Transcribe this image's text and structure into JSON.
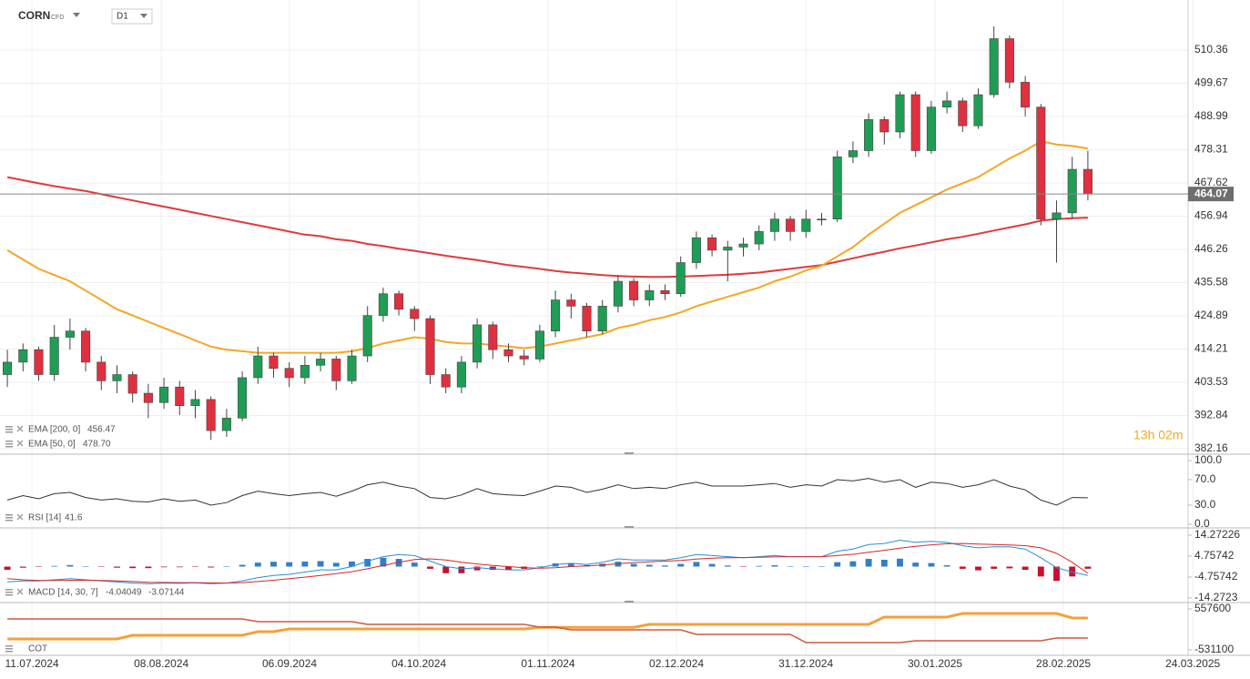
{
  "chart_data": {
    "type": "candlestick",
    "symbol": "CORN",
    "instrument_type": "CFD",
    "timeframe": "D1",
    "countdown": "13h 02m",
    "xlim": [
      -0.47,
      75.4
    ],
    "xticks": [
      {
        "value": 1.57,
        "label": "11.07.2024"
      },
      {
        "value": 9.83,
        "label": "08.08.2024"
      },
      {
        "value": 18.02,
        "label": "06.09.2024"
      },
      {
        "value": 26.28,
        "label": "04.10.2024"
      },
      {
        "value": 34.53,
        "label": "01.11.2024"
      },
      {
        "value": 42.73,
        "label": "02.12.2024"
      },
      {
        "value": 50.99,
        "label": "31.12.2024"
      },
      {
        "value": 59.24,
        "label": "30.01.2025"
      },
      {
        "value": 67.44,
        "label": "28.02.2025"
      },
      {
        "value": 75.7,
        "label": "24.03.2025"
      }
    ],
    "ylim": [
      380.7,
      524.1
    ],
    "yticks": [
      510.36,
      499.67,
      488.99,
      478.31,
      467.62,
      456.94,
      446.26,
      435.58,
      424.89,
      414.21,
      403.53,
      392.84,
      382.16
    ],
    "grid": true,
    "up_color": "#1f9d55",
    "down_color": "#e0303f",
    "candles": [
      [
        406,
        414,
        402,
        410
      ],
      [
        410,
        416,
        407,
        414
      ],
      [
        414,
        415,
        404,
        406
      ],
      [
        406,
        422,
        404,
        418
      ],
      [
        418,
        424,
        414,
        420
      ],
      [
        420,
        421,
        407,
        410
      ],
      [
        410,
        412,
        401,
        404
      ],
      [
        404,
        409,
        400,
        406
      ],
      [
        406,
        407,
        397,
        400
      ],
      [
        400,
        403,
        392,
        397
      ],
      [
        397,
        405,
        395,
        402
      ],
      [
        402,
        404,
        393,
        396
      ],
      [
        396,
        401,
        392,
        398
      ],
      [
        398,
        399,
        385,
        388
      ],
      [
        388,
        395,
        386,
        392
      ],
      [
        392,
        407,
        391,
        405
      ],
      [
        405,
        415,
        403,
        412
      ],
      [
        412,
        413,
        405,
        408
      ],
      [
        408,
        410,
        402,
        405
      ],
      [
        405,
        412,
        403,
        409
      ],
      [
        409,
        413,
        407,
        411
      ],
      [
        411,
        412,
        401,
        404
      ],
      [
        404,
        414,
        403,
        412
      ],
      [
        412,
        428,
        410,
        425
      ],
      [
        425,
        434,
        423,
        432
      ],
      [
        432,
        433,
        425,
        427
      ],
      [
        427,
        428,
        420,
        424
      ],
      [
        424,
        425,
        403,
        406
      ],
      [
        406,
        408,
        400,
        402
      ],
      [
        402,
        412,
        400,
        410
      ],
      [
        410,
        424,
        408,
        422
      ],
      [
        422,
        423,
        411,
        414
      ],
      [
        414,
        416,
        410,
        412
      ],
      [
        412,
        414,
        409,
        411
      ],
      [
        411,
        422,
        410,
        420
      ],
      [
        420,
        433,
        418,
        430
      ],
      [
        430,
        432,
        424,
        428
      ],
      [
        428,
        429,
        418,
        420
      ],
      [
        420,
        430,
        419,
        428
      ],
      [
        428,
        438,
        426,
        436
      ],
      [
        436,
        437,
        428,
        430
      ],
      [
        430,
        435,
        428,
        433
      ],
      [
        433,
        435,
        430,
        432
      ],
      [
        432,
        444,
        431,
        442
      ],
      [
        442,
        452,
        440,
        450
      ],
      [
        450,
        451,
        444,
        446
      ],
      [
        446,
        449,
        436,
        447
      ],
      [
        447,
        450,
        444,
        448
      ],
      [
        448,
        454,
        446,
        452
      ],
      [
        452,
        458,
        449,
        456
      ],
      [
        456,
        457,
        449,
        452
      ],
      [
        452,
        459,
        450,
        456
      ],
      [
        456,
        458,
        454,
        456
      ],
      [
        456,
        478,
        455,
        476
      ],
      [
        476,
        481,
        474,
        478
      ],
      [
        478,
        490,
        476,
        488
      ],
      [
        488,
        489,
        480,
        484
      ],
      [
        484,
        497,
        482,
        496
      ],
      [
        496,
        497,
        476,
        478
      ],
      [
        478,
        494,
        477,
        492
      ],
      [
        492,
        497,
        490,
        494
      ],
      [
        494,
        495,
        484,
        486
      ],
      [
        486,
        498,
        485,
        496
      ],
      [
        496,
        518,
        495,
        514
      ],
      [
        514,
        515,
        498,
        500
      ],
      [
        500,
        502,
        489,
        492
      ],
      [
        492,
        493,
        454,
        456
      ],
      [
        456,
        462,
        442,
        458
      ],
      [
        458,
        476,
        456,
        472
      ],
      [
        472,
        478,
        462,
        464.07
      ]
    ],
    "overlays": [
      {
        "name": "EMA [200, 0]",
        "color": "#e03a3a",
        "values": [
          469.5,
          468.5,
          467.5,
          466.6,
          465.8,
          465,
          464,
          463,
          462,
          461,
          460,
          459,
          458,
          457,
          456,
          455,
          454,
          453,
          452,
          451,
          450.5,
          449.5,
          449,
          448,
          447.3,
          446.5,
          445.8,
          445,
          444.2,
          443.5,
          442.8,
          442,
          441.2,
          440.6,
          440,
          439.3,
          438.8,
          438.4,
          438,
          437.7,
          437.5,
          437.4,
          437.4,
          437.5,
          437.7,
          437.9,
          438.1,
          438.4,
          438.8,
          439.4,
          440,
          440.6,
          441.2,
          442.3,
          443.4,
          444.5,
          445.5,
          446.6,
          447.5,
          448.5,
          449.5,
          450.3,
          451.3,
          452.3,
          453.3,
          454.3,
          455.5,
          456,
          456.3,
          456.47
        ]
      },
      {
        "name": "EMA [50, 0]",
        "color": "#f5a623",
        "value_label": "478.70",
        "values": [
          446,
          443,
          440,
          438,
          436,
          433,
          430,
          427,
          425,
          423,
          421,
          419,
          417,
          415,
          414,
          413.5,
          413,
          413,
          413,
          413,
          413,
          413,
          413.5,
          414.5,
          416,
          417,
          418,
          417.5,
          416.5,
          416,
          416,
          415.5,
          415,
          414.5,
          415,
          416,
          417,
          418,
          419,
          421,
          422,
          423.5,
          424.5,
          426,
          428,
          429.5,
          431,
          432.5,
          434,
          436,
          437.5,
          439.5,
          441,
          444,
          447,
          451,
          454.5,
          458,
          460.5,
          463,
          465.5,
          467.5,
          469.5,
          472.5,
          475.5,
          478,
          481,
          480,
          479.5,
          478.7
        ]
      }
    ],
    "panels": [
      {
        "type": "line",
        "name": "RSI [14]",
        "ylim": [
          -2.9,
          108.6
        ],
        "yticks": [
          {
            "value": 100,
            "label": "100.0"
          },
          {
            "value": 70,
            "label": "70.0"
          },
          {
            "value": 30,
            "label": "30.0"
          },
          {
            "value": 0,
            "label": "0.0"
          }
        ],
        "series": [
          {
            "color": "#333333",
            "values": [
              38,
              45,
              40,
              48,
              50,
              42,
              38,
              40,
              36,
              35,
              40,
              36,
              38,
              30,
              34,
              45,
              52,
              48,
              45,
              48,
              50,
              44,
              52,
              62,
              66,
              60,
              56,
              42,
              40,
              46,
              56,
              48,
              46,
              45,
              52,
              60,
              58,
              50,
              55,
              62,
              56,
              58,
              56,
              62,
              66,
              60,
              60,
              60,
              62,
              64,
              58,
              62,
              60,
              70,
              68,
              72,
              66,
              70,
              58,
              66,
              64,
              58,
              62,
              70,
              60,
              54,
              38,
              30,
              42,
              41.6
            ]
          }
        ]
      },
      {
        "type": "macd",
        "name": "MACD [14, 30, 7]",
        "ylim": [
          -15.51,
          16.75
        ],
        "yticks": [
          14.27226,
          4.75742,
          -4.75742,
          -14.2723
        ],
        "series": [
          {
            "color": "#2a8fd6",
            "values": [
              -7,
              -6.5,
              -6.5,
              -6,
              -5.5,
              -6,
              -6.5,
              -7,
              -7.5,
              -7.8,
              -7.5,
              -7.6,
              -7.4,
              -7.8,
              -7.5,
              -6.5,
              -5,
              -4,
              -3.5,
              -2.5,
              -1.5,
              -1.5,
              0,
              2.5,
              4.5,
              5.5,
              5,
              2.5,
              0,
              -1,
              -0.5,
              -1,
              -1.5,
              -1.5,
              -0.5,
              1,
              1.5,
              1,
              2,
              3.5,
              3,
              3,
              3,
              4,
              5.5,
              5,
              4.5,
              4,
              4.5,
              5,
              4.5,
              4.5,
              4.5,
              7,
              8,
              10,
              10.5,
              12,
              11,
              11.5,
              11,
              9.5,
              8.5,
              9,
              9,
              8,
              4,
              -0.5,
              -2.5,
              -4.04049
            ]
          },
          {
            "color": "#d62728",
            "values": [
              -5.5,
              -6,
              -6.3,
              -6.3,
              -6.2,
              -6.2,
              -6.3,
              -6.5,
              -6.8,
              -7.1,
              -7.2,
              -7.3,
              -7.3,
              -7.4,
              -7.5,
              -7.3,
              -6.8,
              -6.2,
              -5.5,
              -4.8,
              -4,
              -3.2,
              -2.3,
              -1,
              0.5,
              2,
              3.2,
              3.5,
              3,
              2,
              1.2,
              0.5,
              0,
              -0.5,
              -0.7,
              -0.5,
              0,
              0.3,
              0.7,
              1.3,
              1.8,
              2.2,
              2.5,
              2.8,
              3.4,
              3.8,
              4,
              4.1,
              4.2,
              4.4,
              4.5,
              4.5,
              4.5,
              5,
              5.6,
              6.5,
              7.4,
              8.4,
              9.2,
              9.9,
              10.4,
              10.5,
              10.2,
              10,
              9.8,
              9.5,
              8.5,
              6,
              2,
              -3.07144
            ]
          }
        ],
        "histogram": {
          "up_color": "#2f7fc9",
          "down_color": "#c8102e",
          "values": [
            -1.5,
            -0.5,
            -0.2,
            0.3,
            0.7,
            0.2,
            -0.2,
            -0.5,
            -0.7,
            -0.7,
            -0.3,
            -0.3,
            -0.1,
            -0.4,
            0,
            0.8,
            1.8,
            2.2,
            2,
            2.3,
            2.5,
            1.7,
            2.3,
            3.5,
            4,
            3.5,
            1.8,
            -1,
            -3,
            -3,
            -1.7,
            -1.5,
            -1.5,
            -1,
            0.2,
            1.5,
            1.5,
            0.7,
            1.3,
            2.2,
            1.2,
            0.8,
            0.5,
            1.2,
            2.1,
            1.2,
            0.5,
            -0.1,
            0.3,
            0.6,
            0,
            0,
            0,
            2,
            2.4,
            3.5,
            3.1,
            3.6,
            1.8,
            1.6,
            0.6,
            -1,
            -1.7,
            -1,
            -0.8,
            -1.5,
            -4.5,
            -6.5,
            -4.5,
            -0.97
          ]
        }
      },
      {
        "type": "line",
        "name": "COT",
        "ylim": [
          -627900,
          678600
        ],
        "yticks": [
          557600,
          -531100
        ],
        "series": [
          {
            "color": "#f5a03a",
            "width": 3,
            "values": [
              -240000,
              -240000,
              -240000,
              -240000,
              -240000,
              -240000,
              -240000,
              -240000,
              -144000,
              -144000,
              -144000,
              -144000,
              -144000,
              -144000,
              -144000,
              -144000,
              -47000,
              -47000,
              25000,
              25000,
              25000,
              25000,
              25000,
              25000,
              25000,
              25000,
              25000,
              25000,
              25000,
              25000,
              25000,
              25000,
              25000,
              25000,
              70000,
              70000,
              70000,
              70000,
              70000,
              70000,
              70000,
              146000,
              146000,
              146000,
              146000,
              146000,
              146000,
              146000,
              146000,
              146000,
              146000,
              146000,
              146000,
              146000,
              146000,
              146000,
              340000,
              340000,
              340000,
              340000,
              340000,
              437000,
              437000,
              437000,
              437000,
              437000,
              437000,
              437000,
              315000,
              315000
            ]
          },
          {
            "color": "#d0593a",
            "width": 1.5,
            "values": [
              291000,
              291000,
              291000,
              291000,
              291000,
              291000,
              291000,
              291000,
              291000,
              291000,
              291000,
              291000,
              291000,
              291000,
              291000,
              291000,
              219000,
              219000,
              219000,
              219000,
              219000,
              219000,
              219000,
              146000,
              146000,
              146000,
              146000,
              146000,
              146000,
              146000,
              146000,
              146000,
              146000,
              146000,
              74000,
              74000,
              1000,
              1000,
              1000,
              1000,
              1000,
              1000,
              1000,
              1000,
              -120000,
              -120000,
              -120000,
              -120000,
              -120000,
              -120000,
              -120000,
              -337000,
              -337000,
              -337000,
              -337000,
              -337000,
              -337000,
              -337000,
              -289000,
              -289000,
              -289000,
              -289000,
              -289000,
              -289000,
              -289000,
              -289000,
              -289000,
              -216000,
              -216000,
              -216000
            ]
          }
        ]
      }
    ]
  }
}
